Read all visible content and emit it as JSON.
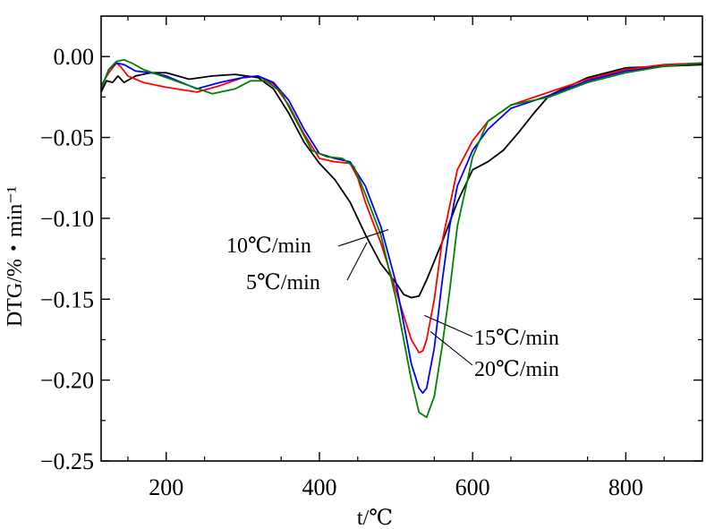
{
  "chart_data": {
    "type": "line",
    "xlabel": "t/℃",
    "ylabel": "DTG/%・min⁻¹",
    "xlim": [
      115,
      900
    ],
    "ylim": [
      -0.25,
      0.025
    ],
    "x_ticks": [
      200,
      400,
      600,
      800
    ],
    "y_ticks": [
      0.0,
      -0.05,
      -0.1,
      -0.15,
      -0.2,
      -0.25
    ],
    "x_tick_labels": [
      "200",
      "400",
      "600",
      "800"
    ],
    "y_tick_labels": [
      "0.00",
      "−0.05",
      "−0.10",
      "−0.15",
      "−0.20",
      "−0.25"
    ],
    "grid": false,
    "series": [
      {
        "name": "5℃/min",
        "color": "#000000",
        "x": [
          115,
          122,
          130,
          137,
          145,
          160,
          180,
          200,
          230,
          260,
          290,
          320,
          340,
          360,
          380,
          400,
          420,
          440,
          460,
          480,
          500,
          510,
          520,
          530,
          540,
          560,
          580,
          600,
          620,
          640,
          660,
          680,
          700,
          750,
          800,
          850,
          900
        ],
        "y": [
          -0.022,
          -0.015,
          -0.016,
          -0.012,
          -0.016,
          -0.012,
          -0.01,
          -0.01,
          -0.014,
          -0.012,
          -0.011,
          -0.013,
          -0.02,
          -0.035,
          -0.053,
          -0.066,
          -0.076,
          -0.09,
          -0.11,
          -0.128,
          -0.14,
          -0.147,
          -0.149,
          -0.148,
          -0.138,
          -0.115,
          -0.09,
          -0.07,
          -0.065,
          -0.058,
          -0.047,
          -0.035,
          -0.024,
          -0.013,
          -0.007,
          -0.006,
          -0.005
        ]
      },
      {
        "name": "10℃/min",
        "color": "#ff0000",
        "x": [
          115,
          125,
          135,
          140,
          150,
          170,
          200,
          240,
          270,
          300,
          320,
          340,
          360,
          380,
          400,
          420,
          440,
          450,
          460,
          480,
          500,
          520,
          530,
          535,
          540,
          550,
          560,
          580,
          600,
          620,
          650,
          700,
          750,
          800,
          850,
          900
        ],
        "y": [
          -0.018,
          -0.01,
          -0.004,
          -0.006,
          -0.012,
          -0.016,
          -0.019,
          -0.022,
          -0.018,
          -0.013,
          -0.012,
          -0.017,
          -0.03,
          -0.048,
          -0.063,
          -0.065,
          -0.066,
          -0.075,
          -0.09,
          -0.115,
          -0.145,
          -0.175,
          -0.183,
          -0.182,
          -0.175,
          -0.15,
          -0.115,
          -0.07,
          -0.052,
          -0.04,
          -0.03,
          -0.022,
          -0.014,
          -0.008,
          -0.005,
          -0.004
        ]
      },
      {
        "name": "15℃/min",
        "color": "#0000ff",
        "x": [
          115,
          125,
          135,
          145,
          160,
          180,
          200,
          240,
          270,
          300,
          320,
          340,
          360,
          380,
          400,
          420,
          440,
          460,
          480,
          500,
          520,
          530,
          535,
          540,
          550,
          560,
          570,
          580,
          600,
          620,
          650,
          700,
          750,
          800,
          850,
          900
        ],
        "y": [
          -0.02,
          -0.008,
          -0.004,
          -0.005,
          -0.009,
          -0.01,
          -0.012,
          -0.02,
          -0.016,
          -0.013,
          -0.012,
          -0.016,
          -0.027,
          -0.045,
          -0.06,
          -0.063,
          -0.065,
          -0.08,
          -0.105,
          -0.14,
          -0.19,
          -0.205,
          -0.208,
          -0.205,
          -0.18,
          -0.14,
          -0.105,
          -0.08,
          -0.058,
          -0.045,
          -0.032,
          -0.024,
          -0.015,
          -0.009,
          -0.006,
          -0.004
        ]
      },
      {
        "name": "20℃/min",
        "color": "#008000",
        "x": [
          115,
          125,
          135,
          145,
          155,
          170,
          200,
          230,
          260,
          290,
          310,
          330,
          350,
          370,
          390,
          410,
          430,
          445,
          460,
          480,
          500,
          520,
          530,
          540,
          550,
          560,
          570,
          580,
          600,
          620,
          650,
          700,
          750,
          800,
          850,
          900
        ],
        "y": [
          -0.02,
          -0.008,
          -0.003,
          -0.002,
          -0.004,
          -0.008,
          -0.013,
          -0.018,
          -0.023,
          -0.02,
          -0.015,
          -0.015,
          -0.022,
          -0.04,
          -0.058,
          -0.062,
          -0.063,
          -0.068,
          -0.085,
          -0.11,
          -0.15,
          -0.2,
          -0.22,
          -0.223,
          -0.21,
          -0.18,
          -0.145,
          -0.105,
          -0.062,
          -0.04,
          -0.03,
          -0.025,
          -0.016,
          -0.01,
          -0.006,
          -0.004
        ]
      }
    ],
    "annotations": [
      {
        "text": "10℃/min",
        "series": "10℃/min",
        "pointer_x": 490,
        "pointer_y": -0.107
      },
      {
        "text": "5℃/min",
        "series": "5℃/min",
        "pointer_x": 462,
        "pointer_y": -0.115
      },
      {
        "text": "15℃/min",
        "series": "15℃/min",
        "pointer_x": 537,
        "pointer_y": -0.16
      },
      {
        "text": "20℃/min",
        "series": "20℃/min",
        "pointer_x": 545,
        "pointer_y": -0.17
      }
    ]
  }
}
